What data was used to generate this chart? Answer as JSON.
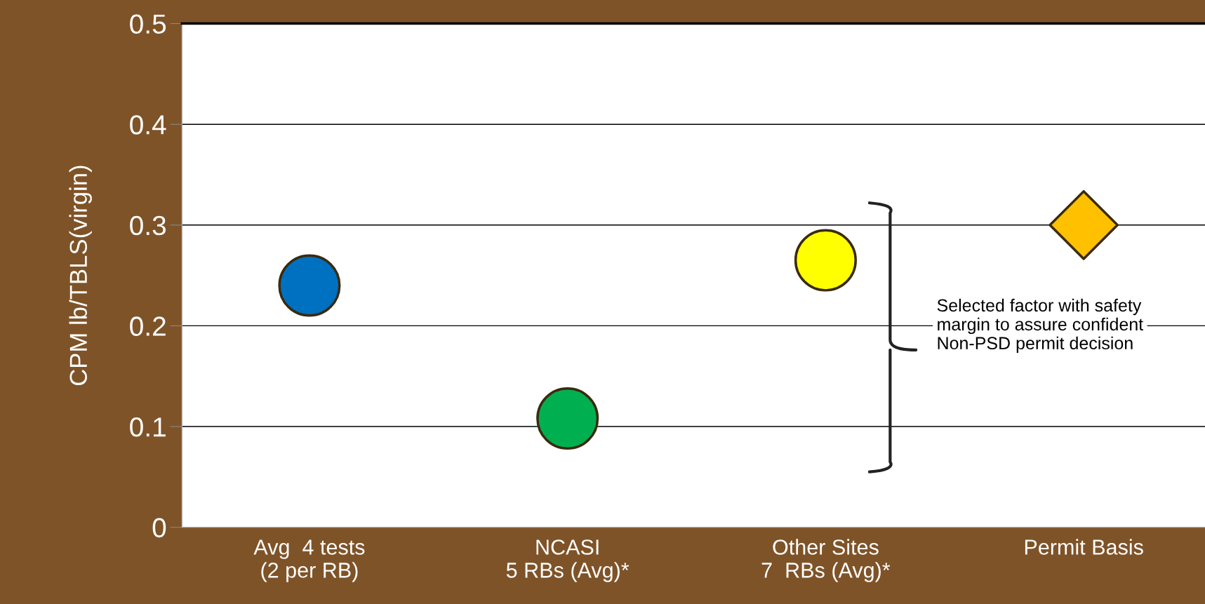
{
  "chart_data": {
    "type": "scatter",
    "ylabel": "CPM lb/TBLS(virgin)",
    "categories": [
      "Avg  4 tests\n(2 per RB)",
      "NCASI\n5 RBs (Avg)*",
      "Other Sites\n7  RBs (Avg)*",
      "Permit Basis"
    ],
    "series": [
      {
        "marker": "circle",
        "x": [
          "Avg  4 tests\n(2 per RB)",
          "NCASI\n5 RBs (Avg)*",
          "Other Sites\n7  RBs (Avg)*"
        ],
        "values": [
          0.24,
          0.108,
          0.265
        ],
        "colors": [
          "#0070c0",
          "#00b050",
          "#ffff00"
        ]
      },
      {
        "marker": "diamond",
        "x": [
          "Permit Basis"
        ],
        "values": [
          0.3
        ],
        "color": "#ffc000"
      }
    ],
    "ylim": [
      0,
      0.5
    ],
    "yticks": [
      {
        "value": 0,
        "label": "0"
      },
      0.1,
      0.2,
      0.3,
      0.4,
      0.5
    ],
    "grid": "y",
    "legend": false,
    "annotations": [
      "Selected factor with safety\nmargin to assure confident\nNon-PSD permit decision"
    ]
  }
}
